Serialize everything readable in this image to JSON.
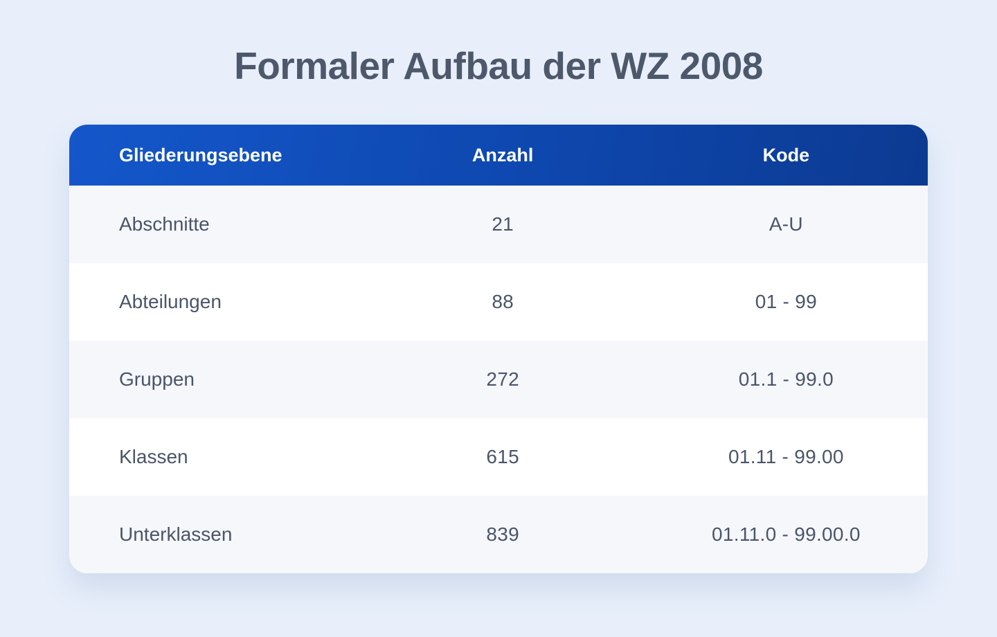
{
  "chart_data": {
    "type": "table",
    "title": "Formaler Aufbau der WZ 2008",
    "columns": [
      "Gliederungsebene",
      "Anzahl",
      "Kode"
    ],
    "rows": [
      [
        "Abschnitte",
        "21",
        "A-U"
      ],
      [
        "Abteilungen",
        "88",
        "01 - 99"
      ],
      [
        "Gruppen",
        "272",
        "01.1 - 99.0"
      ],
      [
        "Klassen",
        "615",
        "01.11 - 99.00"
      ],
      [
        "Unterklassen",
        "839",
        "01.11.0 - 99.00.0"
      ]
    ],
    "layout_hints": {
      "column_alignment": [
        "left",
        "center",
        "center"
      ],
      "zebra_striping": true
    }
  },
  "colors": {
    "page_background": "#e8effb",
    "header_gradient_start": "#1457cb",
    "header_gradient_end": "#0c3a91",
    "header_text": "#ffffff",
    "row_alt_background": "#f6f7fb",
    "row_background": "#ffffff",
    "body_text": "#4a5568",
    "title_text": "#4d586b"
  }
}
